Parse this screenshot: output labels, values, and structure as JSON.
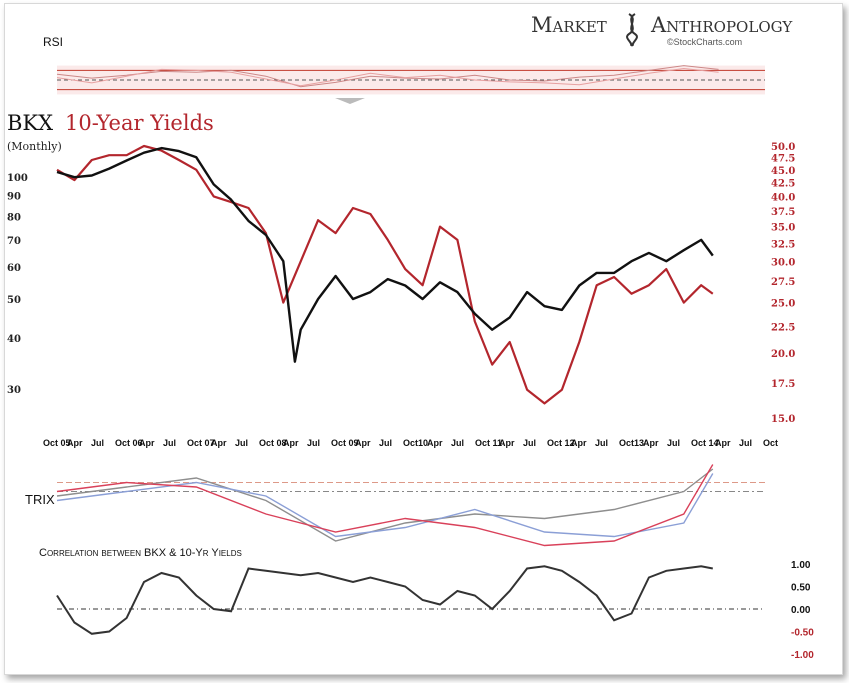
{
  "brand": {
    "name_left": "Market",
    "name_right": "Anthropology",
    "credit": "©StockCharts.com"
  },
  "colors": {
    "bkx": "#111111",
    "yields": "#b3262d",
    "rsi_band": "#c0392b",
    "trix_gray": "#8e8e8e",
    "trix_blue": "#8b9fd6",
    "corr": "#333333"
  },
  "chart_data": [
    {
      "type": "line",
      "panel": "rsi",
      "title": "RSI",
      "x": [
        "2005-10",
        "2006-04",
        "2006-10",
        "2007-04",
        "2007-10",
        "2008-04",
        "2008-10",
        "2009-04",
        "2009-10",
        "2010-04",
        "2010-10",
        "2011-04",
        "2011-10",
        "2012-04",
        "2012-10",
        "2013-04",
        "2013-10",
        "2014-04",
        "2014-10",
        "2015-04"
      ],
      "series": [
        {
          "name": "",
          "values": [
            62,
            54,
            60,
            68,
            66,
            70,
            58,
            36,
            45,
            58,
            54,
            52,
            60,
            50,
            48,
            56,
            60,
            70,
            80,
            72
          ]
        },
        {
          "name": "",
          "values": [
            55,
            44,
            58,
            72,
            70,
            66,
            52,
            38,
            50,
            64,
            55,
            60,
            50,
            46,
            44,
            40,
            52,
            64,
            74,
            66
          ]
        }
      ],
      "ylim": [
        0,
        100
      ],
      "guides": [
        30,
        50,
        70
      ]
    },
    {
      "type": "line",
      "panel": "price",
      "title": "BKX",
      "title_secondary": "10-Year Yields",
      "subtitle": "(Monthly)",
      "x_ticks": [
        "Oct 05",
        "Apr",
        "Jul",
        "Oct 06",
        "Apr",
        "Jul",
        "Oct 07",
        "Apr",
        "Jul",
        "Oct 08",
        "Apr",
        "Jul",
        "Oct 09",
        "Apr",
        "Jul",
        "Oct10",
        "Apr",
        "Jul",
        "Oct 11",
        "Apr",
        "Jul",
        "Oct 12",
        "Apr",
        "Jul",
        "Oct13",
        "Apr",
        "Jul",
        "Oct 14",
        "Apr",
        "Jul",
        "Oct"
      ],
      "y_left_ticks": [
        100,
        90,
        80,
        70,
        60,
        50,
        40,
        30
      ],
      "y_right_ticks": [
        "50.0",
        "47.5",
        "45.0",
        "42.5",
        "40.0",
        "37.5",
        "35.0",
        "32.5",
        "30.0",
        "27.5",
        "25.0",
        "22.5",
        "20.0",
        "17.5",
        "15.0"
      ],
      "ylim_left": [
        24,
        125
      ],
      "ylim_right": [
        15,
        50
      ],
      "series": [
        {
          "name": "BKX",
          "axis": "left",
          "x": [
            "2005-10",
            "2006-01",
            "2006-04",
            "2006-07",
            "2006-10",
            "2007-01",
            "2007-04",
            "2007-07",
            "2007-10",
            "2008-01",
            "2008-04",
            "2008-07",
            "2008-10",
            "2009-01",
            "2009-03",
            "2009-04",
            "2009-07",
            "2009-10",
            "2010-01",
            "2010-04",
            "2010-07",
            "2010-10",
            "2011-01",
            "2011-04",
            "2011-07",
            "2011-10",
            "2012-01",
            "2012-04",
            "2012-07",
            "2012-10",
            "2013-01",
            "2013-04",
            "2013-07",
            "2013-10",
            "2014-01",
            "2014-04",
            "2014-07",
            "2014-10",
            "2015-01",
            "2015-03"
          ],
          "values": [
            103,
            100,
            101,
            105,
            110,
            115,
            118,
            116,
            112,
            96,
            88,
            78,
            72,
            62,
            35,
            42,
            50,
            57,
            50,
            52,
            56,
            54,
            50,
            55,
            52,
            46,
            42,
            45,
            52,
            48,
            47,
            54,
            58,
            58,
            62,
            65,
            62,
            66,
            70,
            64
          ]
        },
        {
          "name": "10-Year Yields",
          "axis": "right",
          "x": [
            "2005-10",
            "2006-01",
            "2006-04",
            "2006-07",
            "2006-10",
            "2007-01",
            "2007-04",
            "2007-07",
            "2007-10",
            "2008-01",
            "2008-04",
            "2008-07",
            "2008-10",
            "2009-01",
            "2009-04",
            "2009-07",
            "2009-10",
            "2010-01",
            "2010-04",
            "2010-07",
            "2010-10",
            "2011-01",
            "2011-04",
            "2011-07",
            "2011-10",
            "2012-01",
            "2012-04",
            "2012-07",
            "2012-10",
            "2013-01",
            "2013-04",
            "2013-07",
            "2013-10",
            "2014-01",
            "2014-04",
            "2014-07",
            "2014-10",
            "2015-01",
            "2015-03"
          ],
          "values": [
            45,
            43,
            47,
            48,
            48,
            50,
            49,
            47,
            45,
            40,
            39,
            38,
            34,
            25,
            30,
            36,
            34,
            38,
            37,
            33,
            29,
            27,
            35,
            33,
            23,
            19,
            21,
            17,
            16,
            17,
            21,
            27,
            28,
            26,
            27,
            29,
            25,
            27,
            26
          ]
        }
      ]
    },
    {
      "type": "line",
      "panel": "trix",
      "title": "TRIX",
      "x": [
        "2005-10",
        "2006-10",
        "2007-10",
        "2008-10",
        "2009-10",
        "2010-10",
        "2011-10",
        "2012-10",
        "2013-10",
        "2014-10",
        "2015-03"
      ],
      "series": [
        {
          "name": "",
          "values": [
            0.2,
            0.4,
            0.6,
            0.1,
            -0.8,
            -0.4,
            -0.2,
            -0.3,
            -0.1,
            0.3,
            0.8
          ]
        },
        {
          "name": "",
          "values": [
            0.1,
            0.3,
            0.5,
            0.2,
            -0.7,
            -0.5,
            -0.1,
            -0.6,
            -0.7,
            -0.4,
            0.7
          ]
        },
        {
          "name": "",
          "values": [
            0.3,
            0.5,
            0.4,
            -0.2,
            -0.6,
            -0.3,
            -0.5,
            -0.9,
            -0.8,
            -0.2,
            0.9
          ]
        }
      ],
      "ylim": [
        -1,
        1
      ],
      "guides": [
        0.1,
        0.3
      ]
    },
    {
      "type": "line",
      "panel": "correlation",
      "title": "Correlation between BKX & 10-Yr Yields",
      "y_ticks": [
        "1.00",
        "0.50",
        "0.00",
        "-0.50",
        "-1.00"
      ],
      "ylim": [
        -1,
        1
      ],
      "x": [
        "2005-10",
        "2006-01",
        "2006-04",
        "2006-07",
        "2006-10",
        "2007-01",
        "2007-04",
        "2007-07",
        "2007-10",
        "2008-01",
        "2008-04",
        "2008-07",
        "2008-10",
        "2009-01",
        "2009-04",
        "2009-07",
        "2009-10",
        "2010-01",
        "2010-04",
        "2010-07",
        "2010-10",
        "2011-01",
        "2011-04",
        "2011-07",
        "2011-10",
        "2012-01",
        "2012-04",
        "2012-07",
        "2012-10",
        "2013-01",
        "2013-04",
        "2013-07",
        "2013-10",
        "2014-01",
        "2014-04",
        "2014-07",
        "2014-10",
        "2015-01",
        "2015-03"
      ],
      "values": [
        0.3,
        -0.3,
        -0.55,
        -0.5,
        -0.2,
        0.6,
        0.8,
        0.7,
        0.3,
        0.0,
        -0.05,
        0.9,
        0.85,
        0.8,
        0.75,
        0.8,
        0.7,
        0.6,
        0.7,
        0.6,
        0.5,
        0.2,
        0.1,
        0.4,
        0.3,
        0.0,
        0.4,
        0.9,
        0.95,
        0.85,
        0.6,
        0.3,
        -0.25,
        -0.1,
        0.7,
        0.85,
        0.9,
        0.95,
        0.9
      ]
    }
  ]
}
